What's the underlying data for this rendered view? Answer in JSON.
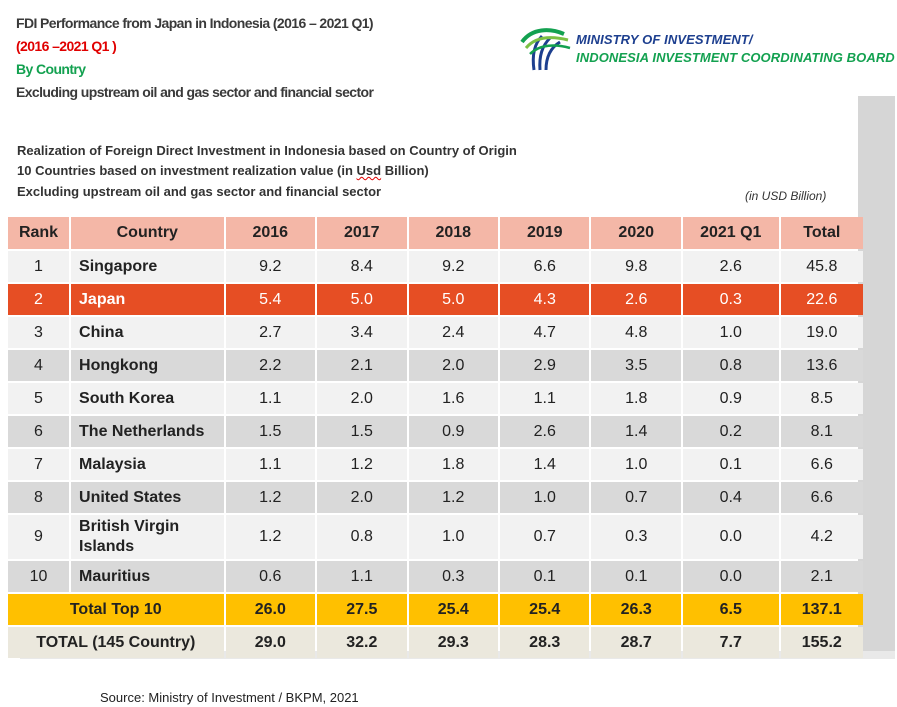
{
  "header": {
    "title": "FDI Performance from Japan in Indonesia (2016 – 2021 Q1)",
    "period": "(2016 –2021 Q1 )",
    "by": "By Country",
    "note": "Excluding upstream oil and gas sector and financial sector"
  },
  "logo": {
    "line1": "MINISTRY OF INVESTMENT/",
    "line2": "INDONESIA INVESTMENT COORDINATING BOARD"
  },
  "subtitle": {
    "line1": "Realization of Foreign Direct Investment in Indonesia based on Country of Origin",
    "line2_pre": "10 Countries based on investment realization value (in ",
    "line2_usd": "Usd",
    "line2_post": " Billion)",
    "line3": "Excluding upstream oil and gas sector and financial sector",
    "unit": "(in USD Billion)"
  },
  "table": {
    "headers": [
      "Rank",
      "Country",
      "2016",
      "2017",
      "2018",
      "2019",
      "2020",
      "2021 Q1",
      "Total"
    ],
    "rows": [
      {
        "rank": "1",
        "country": "Singapore",
        "values": [
          "9.2",
          "8.4",
          "9.2",
          "6.6",
          "9.8",
          "2.6",
          "45.8"
        ]
      },
      {
        "rank": "2",
        "country": "Japan",
        "values": [
          "5.4",
          "5.0",
          "5.0",
          "4.3",
          "2.6",
          "0.3",
          "22.6"
        ]
      },
      {
        "rank": "3",
        "country": "China",
        "values": [
          "2.7",
          "3.4",
          "2.4",
          "4.7",
          "4.8",
          "1.0",
          "19.0"
        ]
      },
      {
        "rank": "4",
        "country": "Hongkong",
        "values": [
          "2.2",
          "2.1",
          "2.0",
          "2.9",
          "3.5",
          "0.8",
          "13.6"
        ]
      },
      {
        "rank": "5",
        "country": "South Korea",
        "values": [
          "1.1",
          "2.0",
          "1.6",
          "1.1",
          "1.8",
          "0.9",
          "8.5"
        ]
      },
      {
        "rank": "6",
        "country": "The Netherlands",
        "values": [
          "1.5",
          "1.5",
          "0.9",
          "2.6",
          "1.4",
          "0.2",
          "8.1"
        ]
      },
      {
        "rank": "7",
        "country": "Malaysia",
        "values": [
          "1.1",
          "1.2",
          "1.8",
          "1.4",
          "1.0",
          "0.1",
          "6.6"
        ]
      },
      {
        "rank": "8",
        "country": "United States",
        "values": [
          "1.2",
          "2.0",
          "1.2",
          "1.0",
          "0.7",
          "0.4",
          "6.6"
        ]
      },
      {
        "rank": "9",
        "country": "British Virgin Islands",
        "values": [
          "1.2",
          "0.8",
          "1.0",
          "0.7",
          "0.3",
          "0.0",
          "4.2"
        ]
      },
      {
        "rank": "10",
        "country": "Mauritius",
        "values": [
          "0.6",
          "1.1",
          "0.3",
          "0.1",
          "0.1",
          "0.0",
          "2.1"
        ]
      }
    ],
    "total_top10": {
      "label": "Total Top 10",
      "values": [
        "26.0",
        "27.5",
        "25.4",
        "25.4",
        "26.3",
        "6.5",
        "137.1"
      ]
    },
    "grand_total": {
      "label": "TOTAL (145 Country)",
      "values": [
        "29.0",
        "32.2",
        "29.3",
        "28.3",
        "28.7",
        "7.7",
        "155.2"
      ]
    }
  },
  "source": "Source:   Ministry of Investment / BKPM, 2021",
  "colors": {
    "header_row": "#f4b7a7",
    "highlight_row": "#e64e24",
    "total_row": "#ffc000",
    "grand_total_row": "#ebe8dd",
    "title_red": "#e00000",
    "title_green": "#13a150",
    "logo_blue": "#1d3f8f"
  }
}
